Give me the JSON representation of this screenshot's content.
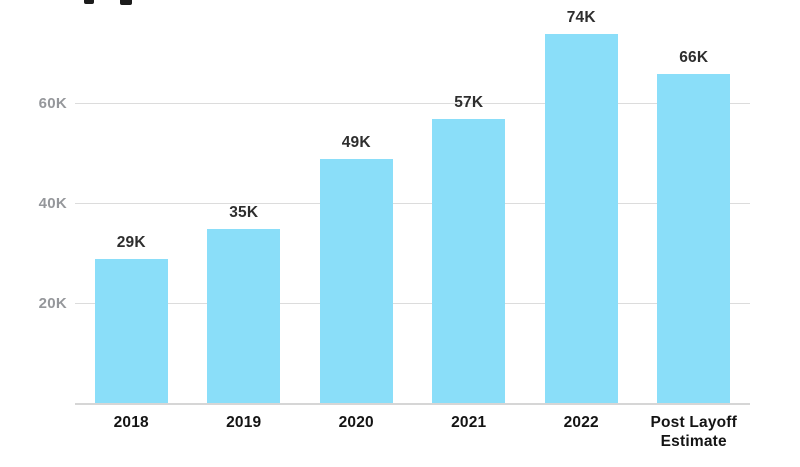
{
  "chart_data": {
    "type": "bar",
    "title": "",
    "xlabel": "",
    "ylabel": "",
    "unit": "K",
    "categories": [
      "2018",
      "2019",
      "2020",
      "2021",
      "2022",
      "Post Layoff Estimate"
    ],
    "values": [
      29,
      35,
      49,
      57,
      74,
      66
    ],
    "value_labels": [
      "29K",
      "35K",
      "49K",
      "57K",
      "74K",
      "66K"
    ],
    "yticks": [
      {
        "value": 20,
        "label": "20K"
      },
      {
        "value": 40,
        "label": "40K"
      },
      {
        "value": 60,
        "label": "60K"
      }
    ],
    "ylim": [
      0,
      80.8
    ],
    "grid": "horizontal",
    "legend": "none",
    "colors": {
      "bar": "#8ADEF9",
      "gridline": "#DCDCDC",
      "baseline": "#D6D6D6",
      "value_label": "#2E2E2E",
      "axis_tick_label": "#95979B",
      "category_label": "#141414"
    }
  }
}
